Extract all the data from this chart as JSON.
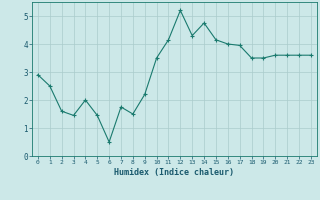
{
  "x": [
    0,
    1,
    2,
    3,
    4,
    5,
    6,
    7,
    8,
    9,
    10,
    11,
    12,
    13,
    14,
    15,
    16,
    17,
    18,
    19,
    20,
    21,
    22,
    23
  ],
  "y": [
    2.9,
    2.5,
    1.6,
    1.45,
    2.0,
    1.45,
    0.5,
    1.75,
    1.5,
    2.2,
    3.5,
    4.15,
    5.2,
    4.3,
    4.75,
    4.15,
    4.0,
    3.95,
    3.5,
    3.5,
    3.6,
    3.6,
    3.6,
    3.6
  ],
  "xlabel": "Humidex (Indice chaleur)",
  "xlim": [
    -0.5,
    23.5
  ],
  "ylim": [
    0,
    5.5
  ],
  "yticks": [
    0,
    1,
    2,
    3,
    4,
    5
  ],
  "xtick_labels": [
    "0",
    "1",
    "2",
    "3",
    "4",
    "5",
    "6",
    "7",
    "8",
    "9",
    "10",
    "11",
    "12",
    "13",
    "14",
    "15",
    "16",
    "17",
    "18",
    "19",
    "20",
    "21",
    "22",
    "23"
  ],
  "line_color": "#1a7a6e",
  "marker": "+",
  "bg_color": "#cce8e8",
  "grid_color": "#aacccc",
  "font_color": "#1a5a6e",
  "figsize": [
    3.2,
    2.0
  ],
  "dpi": 100
}
